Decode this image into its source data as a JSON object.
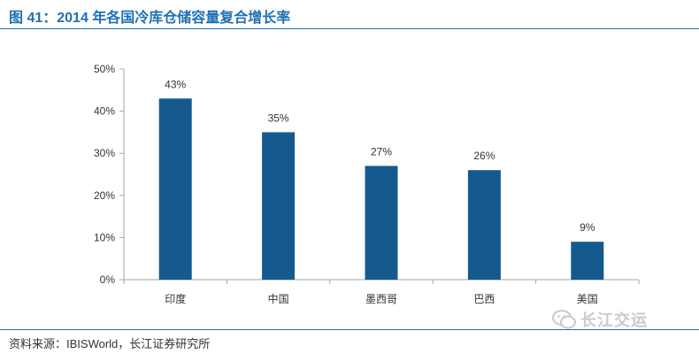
{
  "header": {
    "title": "图 41：2014 年各国冷库仓储容量复合增长率"
  },
  "footer": {
    "source": "资料来源：IBISWorld，长江证券研究所"
  },
  "watermark": {
    "text": "长江交运",
    "icon": "wechat-icon"
  },
  "colors": {
    "bar": "#145a8e",
    "accent": "#1f6fb2",
    "axis": "#a6a6a6"
  },
  "chart_data": {
    "type": "bar",
    "categories": [
      "印度",
      "中国",
      "墨西哥",
      "巴西",
      "美国"
    ],
    "values": [
      43,
      35,
      27,
      26,
      9
    ],
    "data_labels": [
      "43%",
      "35%",
      "27%",
      "26%",
      "9%"
    ],
    "yticks": [
      "0%",
      "10%",
      "20%",
      "30%",
      "40%",
      "50%"
    ],
    "ylim": [
      0,
      50
    ],
    "grid": false,
    "legend": "none"
  }
}
